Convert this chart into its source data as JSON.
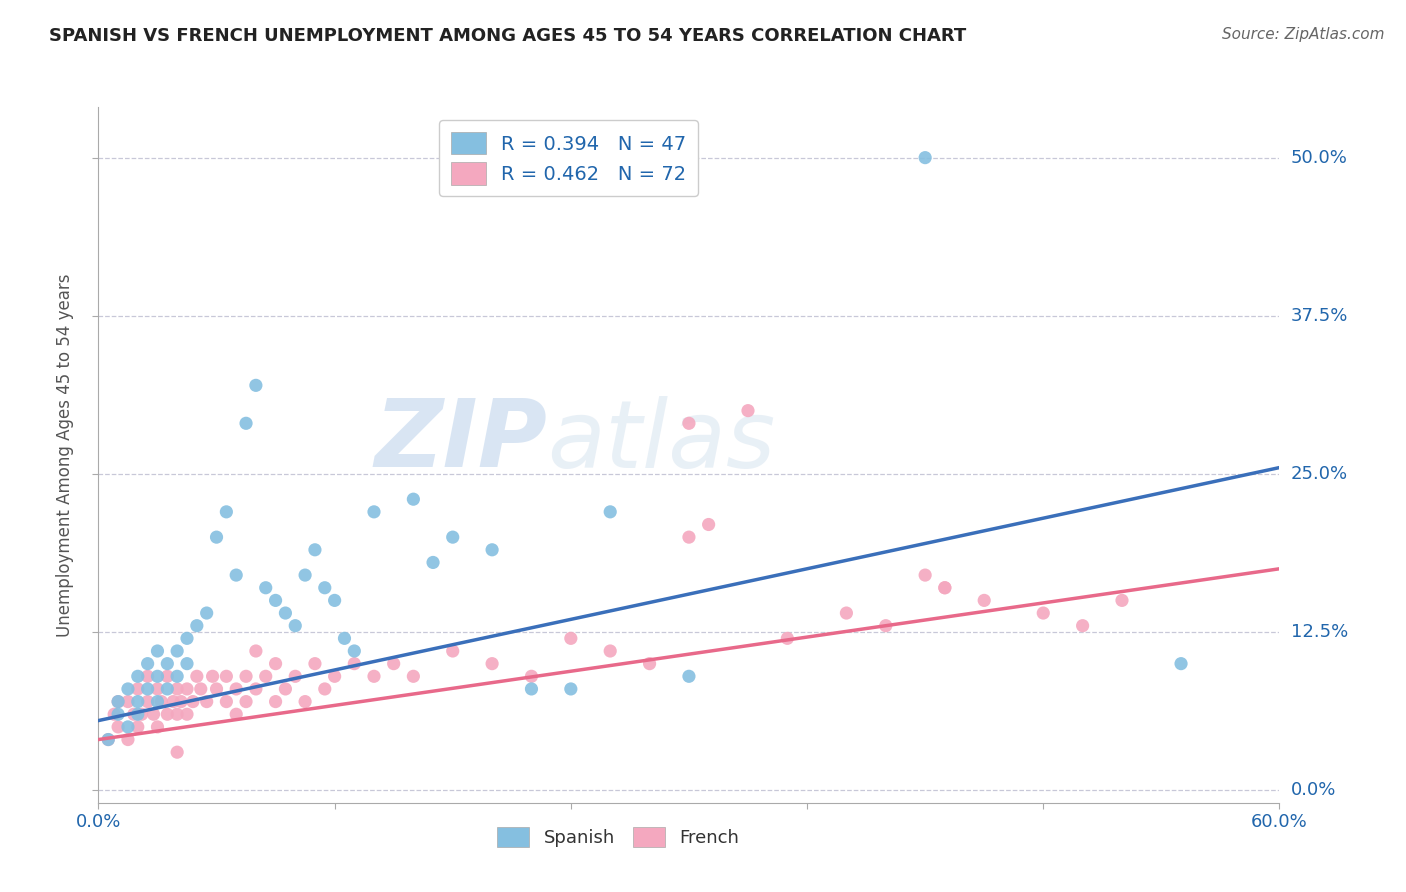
{
  "title": "SPANISH VS FRENCH UNEMPLOYMENT AMONG AGES 45 TO 54 YEARS CORRELATION CHART",
  "source": "Source: ZipAtlas.com",
  "ylabel": "Unemployment Among Ages 45 to 54 years",
  "xlim": [
    0.0,
    0.6
  ],
  "ylim": [
    -0.01,
    0.54
  ],
  "ytick_labels": [
    "0.0%",
    "12.5%",
    "25.0%",
    "37.5%",
    "50.0%"
  ],
  "ytick_values": [
    0.0,
    0.125,
    0.25,
    0.375,
    0.5
  ],
  "xtick_labels": [
    "0.0%",
    "",
    "",
    "",
    "",
    "60.0%"
  ],
  "xtick_values": [
    0.0,
    0.12,
    0.24,
    0.36,
    0.48,
    0.6
  ],
  "legend_spanish": "R = 0.394   N = 47",
  "legend_french": "R = 0.462   N = 72",
  "spanish_color": "#85bfe0",
  "french_color": "#f4a8bf",
  "spanish_line_color": "#3a6fba",
  "french_line_color": "#e8698a",
  "background_color": "#ffffff",
  "grid_color": "#c8c8d8",
  "watermark_zip": "ZIP",
  "watermark_atlas": "atlas",
  "spanish_line_x": [
    0.0,
    0.6
  ],
  "spanish_line_y": [
    0.055,
    0.255
  ],
  "french_line_x": [
    0.0,
    0.6
  ],
  "french_line_y": [
    0.04,
    0.175
  ],
  "spanish_x": [
    0.005,
    0.01,
    0.01,
    0.015,
    0.015,
    0.02,
    0.02,
    0.02,
    0.025,
    0.025,
    0.03,
    0.03,
    0.03,
    0.035,
    0.035,
    0.04,
    0.04,
    0.045,
    0.045,
    0.05,
    0.055,
    0.06,
    0.065,
    0.07,
    0.075,
    0.08,
    0.085,
    0.09,
    0.095,
    0.1,
    0.105,
    0.11,
    0.115,
    0.12,
    0.125,
    0.13,
    0.14,
    0.16,
    0.17,
    0.18,
    0.2,
    0.22,
    0.24,
    0.26,
    0.3,
    0.42,
    0.55
  ],
  "spanish_y": [
    0.04,
    0.06,
    0.07,
    0.05,
    0.08,
    0.06,
    0.07,
    0.09,
    0.08,
    0.1,
    0.07,
    0.09,
    0.11,
    0.08,
    0.1,
    0.09,
    0.11,
    0.12,
    0.1,
    0.13,
    0.14,
    0.2,
    0.22,
    0.17,
    0.29,
    0.32,
    0.16,
    0.15,
    0.14,
    0.13,
    0.17,
    0.19,
    0.16,
    0.15,
    0.12,
    0.11,
    0.22,
    0.23,
    0.18,
    0.2,
    0.19,
    0.08,
    0.08,
    0.22,
    0.09,
    0.5,
    0.1
  ],
  "french_x": [
    0.005,
    0.008,
    0.01,
    0.01,
    0.015,
    0.015,
    0.018,
    0.02,
    0.02,
    0.022,
    0.025,
    0.025,
    0.028,
    0.03,
    0.03,
    0.032,
    0.035,
    0.035,
    0.038,
    0.04,
    0.04,
    0.042,
    0.045,
    0.045,
    0.048,
    0.05,
    0.052,
    0.055,
    0.058,
    0.06,
    0.065,
    0.065,
    0.07,
    0.07,
    0.075,
    0.075,
    0.08,
    0.085,
    0.09,
    0.09,
    0.095,
    0.1,
    0.105,
    0.11,
    0.115,
    0.12,
    0.13,
    0.14,
    0.15,
    0.16,
    0.18,
    0.2,
    0.22,
    0.24,
    0.26,
    0.28,
    0.3,
    0.33,
    0.35,
    0.38,
    0.4,
    0.43,
    0.45,
    0.48,
    0.5,
    0.52,
    0.3,
    0.31,
    0.42,
    0.43,
    0.08,
    0.04
  ],
  "french_y": [
    0.04,
    0.06,
    0.05,
    0.07,
    0.04,
    0.07,
    0.06,
    0.05,
    0.08,
    0.06,
    0.07,
    0.09,
    0.06,
    0.08,
    0.05,
    0.07,
    0.06,
    0.09,
    0.07,
    0.06,
    0.08,
    0.07,
    0.06,
    0.08,
    0.07,
    0.09,
    0.08,
    0.07,
    0.09,
    0.08,
    0.07,
    0.09,
    0.08,
    0.06,
    0.09,
    0.07,
    0.08,
    0.09,
    0.07,
    0.1,
    0.08,
    0.09,
    0.07,
    0.1,
    0.08,
    0.09,
    0.1,
    0.09,
    0.1,
    0.09,
    0.11,
    0.1,
    0.09,
    0.12,
    0.11,
    0.1,
    0.29,
    0.3,
    0.12,
    0.14,
    0.13,
    0.16,
    0.15,
    0.14,
    0.13,
    0.15,
    0.2,
    0.21,
    0.17,
    0.16,
    0.11,
    0.03
  ]
}
